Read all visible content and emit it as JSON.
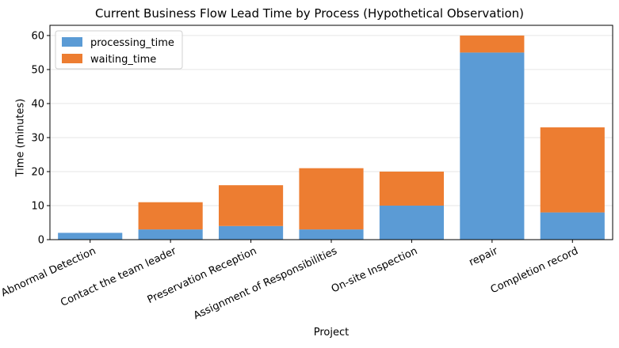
{
  "chart_data": {
    "type": "bar",
    "stacked": true,
    "title": "Current Business Flow Lead Time by Process (Hypothetical Observation)",
    "xlabel": "Project",
    "ylabel": "Time (minutes)",
    "ylim": [
      0,
      63
    ],
    "yticks": [
      0,
      10,
      20,
      30,
      40,
      50,
      60
    ],
    "grid": true,
    "legend_position": "top-left",
    "categories": [
      "Abnormal Detection",
      "Contact the team leader",
      "Preservation Reception",
      "Assignment of Responsibilities",
      "On-site Inspection",
      "repair",
      "Completion record"
    ],
    "series": [
      {
        "name": "processing_time",
        "color": "#5b9bd5",
        "values": [
          2,
          3,
          4,
          3,
          10,
          55,
          8
        ]
      },
      {
        "name": "waiting_time",
        "color": "#ed7d31",
        "values": [
          0,
          8,
          12,
          18,
          10,
          5,
          25
        ]
      }
    ]
  }
}
